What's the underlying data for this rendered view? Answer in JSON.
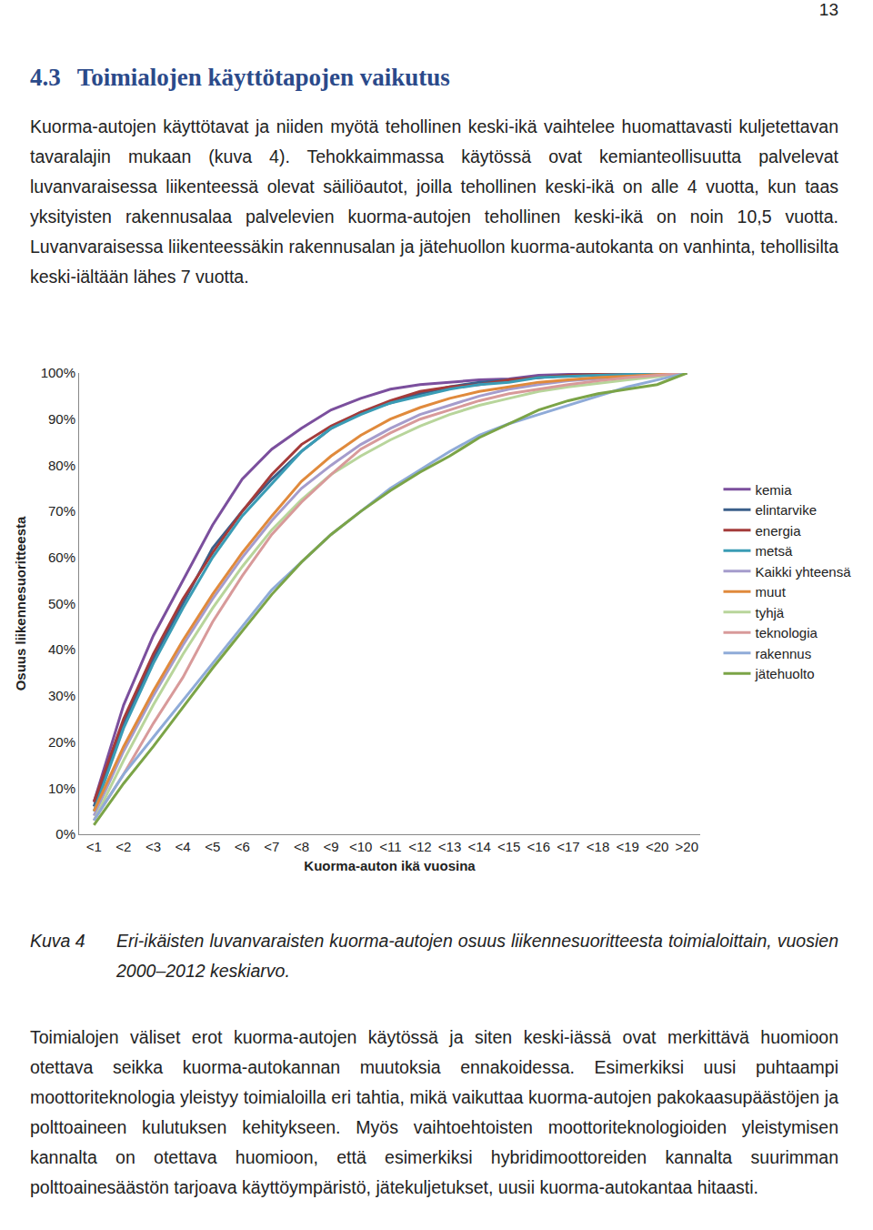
{
  "document": {
    "page_number": "13",
    "heading": {
      "number": "4.3",
      "text": "Toimialojen käyttötapojen vaikutus"
    },
    "paragraphs": [
      "Kuorma-autojen käyttötavat ja niiden myötä tehollinen keski-ikä vaihtelee huomattavasti kuljetettavan tavaralajin mukaan (kuva 4). Tehokkaimmassa käytössä ovat kemianteollisuutta palvelevat luvanvaraisessa liikenteessä olevat säiliöautot, joilla tehollinen keski-ikä on alle 4 vuotta, kun taas yksityisten rakennusalaa palvelevien kuorma-autojen tehollinen keski-ikä on noin 10,5 vuotta. Luvanvaraisessa liikenteessäkin rakennusalan ja jätehuollon kuorma-autokanta on vanhinta, tehollisilta keski-iältään lähes 7 vuotta.",
      "Toimialojen väliset erot kuorma-autojen käytössä ja siten keski-iässä ovat merkittävä huomioon otettava seikka kuorma-autokannan muutoksia ennakoidessa. Esimerkiksi uusi puhtaampi moottoriteknologia yleistyy toimialoilla eri tahtia, mikä vaikuttaa kuorma-autojen pakokaasupäästöjen ja polttoaineen kulutuksen kehitykseen. Myös vaihtoehtoisten moottoriteknologioiden yleistymisen kannalta on otettava huomioon, että esimerkiksi hybridimoottoreiden kannalta suurimman polttoainesäästön tarjoava käyttöympäristö, jätekuljetukset, uusii kuorma-autokantaa hitaasti."
    ],
    "caption": {
      "label": "Kuva 4",
      "text": "Eri-ikäisten luvanvaraisten kuorma-autojen osuus liikennesuoritteesta toimialoittain, vuosien 2000–2012 keskiarvo."
    }
  },
  "chart_data": {
    "type": "line",
    "x_label": "Kuorma-auton ikä vuosina",
    "y_label": "Osuus liikennesuoritteesta",
    "categories": [
      "<1",
      "<2",
      "<3",
      "<4",
      "<5",
      "<6",
      "<7",
      "<8",
      "<9",
      "<10",
      "<11",
      "<12",
      "<13",
      "<14",
      "<15",
      "<16",
      "<17",
      "<18",
      "<19",
      "<20",
      ">20"
    ],
    "ylim": [
      0,
      100
    ],
    "yticks": [
      {
        "value": 0,
        "label": "0%"
      },
      {
        "value": 10,
        "label": "10%"
      },
      {
        "value": 20,
        "label": "20%"
      },
      {
        "value": 30,
        "label": "30%"
      },
      {
        "value": 40,
        "label": "40%"
      },
      {
        "value": 50,
        "label": "50%"
      },
      {
        "value": 60,
        "label": "60%"
      },
      {
        "value": 70,
        "label": "70%"
      },
      {
        "value": 80,
        "label": "80%"
      },
      {
        "value": 90,
        "label": "90%"
      },
      {
        "value": 100,
        "label": "100%"
      }
    ],
    "grid": false,
    "legend": "right",
    "series": [
      {
        "name": "kemia",
        "color": "#7b4f9d",
        "values": [
          7,
          28,
          43,
          55,
          67,
          77,
          83.5,
          88,
          92,
          94.5,
          96.5,
          97.5,
          98,
          98.5,
          98.7,
          99.5,
          99.7,
          99.8,
          99.9,
          100,
          100
        ]
      },
      {
        "name": "elintarvike",
        "color": "#3b5f8a",
        "values": [
          6,
          24,
          38,
          50,
          62,
          70,
          77,
          83,
          88,
          91.5,
          93.5,
          95.5,
          97,
          98,
          98.5,
          99,
          99.5,
          99.7,
          99.8,
          99.9,
          100
        ]
      },
      {
        "name": "energia",
        "color": "#a43b3a",
        "values": [
          7,
          25,
          39,
          51,
          61,
          70,
          78,
          84.5,
          88.5,
          91.5,
          94,
          96,
          97,
          97.5,
          98.5,
          99,
          99.5,
          99.7,
          99.8,
          99.9,
          100
        ]
      },
      {
        "name": "metsä",
        "color": "#3a9cb5",
        "values": [
          5,
          23,
          37,
          49,
          60,
          69,
          76,
          83,
          88,
          91,
          93.5,
          95,
          96.5,
          97.5,
          98,
          99,
          99.3,
          99.5,
          99.7,
          99.9,
          100
        ]
      },
      {
        "name": "Kaikki yhteensä",
        "color": "#a59ccc",
        "values": [
          4,
          18,
          30,
          41,
          51,
          60,
          68,
          75,
          80,
          84.5,
          88,
          91,
          93,
          95,
          96.5,
          97.5,
          98.3,
          98.8,
          99.2,
          99.6,
          100
        ]
      },
      {
        "name": "muut",
        "color": "#e08a3c",
        "values": [
          5,
          19,
          31,
          42,
          52,
          61,
          69,
          76.5,
          82,
          86.5,
          90,
          92.5,
          94.5,
          96,
          97,
          98,
          98.5,
          99,
          99.3,
          99.6,
          100
        ]
      },
      {
        "name": "tyhjä",
        "color": "#b8d59b",
        "values": [
          3,
          16,
          28,
          39,
          49,
          58,
          66,
          72.5,
          78,
          82,
          85.5,
          88.5,
          91,
          93,
          94.5,
          96,
          97,
          97.8,
          98.5,
          99.2,
          100
        ]
      },
      {
        "name": "teknologia",
        "color": "#d89a9a",
        "values": [
          3,
          13,
          24,
          34,
          46,
          56,
          65,
          72,
          78,
          83.5,
          87,
          90,
          92,
          94,
          95.5,
          96.5,
          97.5,
          98.3,
          99,
          99.5,
          100
        ]
      },
      {
        "name": "rakennus",
        "color": "#8fabd8",
        "values": [
          3,
          13,
          21,
          29,
          37,
          45,
          53,
          59,
          65,
          70,
          75,
          79,
          83,
          86.5,
          89,
          91,
          93,
          95,
          97,
          98.5,
          100
        ]
      },
      {
        "name": "jätehuolto",
        "color": "#7ba447",
        "values": [
          2,
          11,
          19,
          27.5,
          36,
          44,
          52,
          59,
          65,
          70,
          74.5,
          78.5,
          82,
          86,
          89,
          92,
          94,
          95.5,
          96.5,
          97.5,
          100
        ]
      }
    ]
  }
}
